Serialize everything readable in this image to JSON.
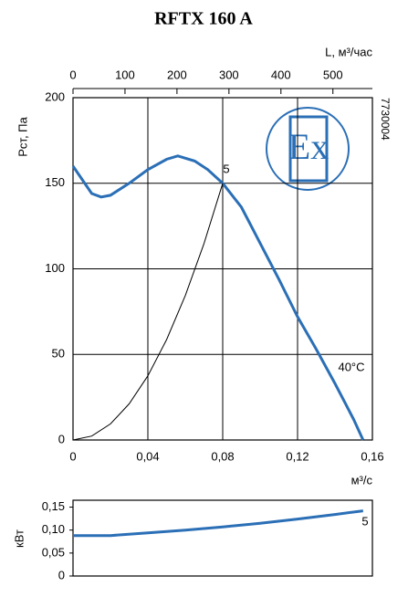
{
  "chart_data": [
    {
      "type": "line",
      "title": "RFTX 160 A",
      "ylabel": "Pст, Па",
      "xlabel": "м³/с",
      "x2label": "L, м³/час",
      "xlim": [
        0,
        0.16
      ],
      "xticks": [
        0,
        {
          "value": 0.04,
          "label": "0,04"
        },
        {
          "value": 0.08,
          "label": "0,08"
        },
        {
          "value": 0.12,
          "label": "0,12"
        },
        {
          "value": 0.16,
          "label": "0,16"
        }
      ],
      "x2lim": [
        0,
        576
      ],
      "x2ticks": [
        0,
        100,
        200,
        300,
        400,
        500
      ],
      "ylim": [
        0,
        200
      ],
      "yticks": [
        0,
        50,
        100,
        150,
        200
      ],
      "grid": true,
      "series": [
        {
          "color": "#2b6fb6",
          "x": [
            0,
            0.01,
            0.015,
            0.02,
            0.03,
            0.04,
            0.05,
            0.056,
            0.065,
            0.072,
            0.08,
            0.09,
            0.1,
            0.11,
            0.12,
            0.13,
            0.14,
            0.15,
            0.155
          ],
          "values": [
            160,
            144,
            142,
            143,
            150,
            158,
            164,
            166,
            163,
            158,
            150,
            136,
            115,
            94,
            72,
            53,
            33,
            12,
            0
          ]
        },
        {
          "color": "#000000",
          "x": [
            0,
            0.01,
            0.02,
            0.03,
            0.04,
            0.05,
            0.06,
            0.07,
            0.08
          ],
          "values": [
            0,
            2.3,
            9.4,
            21.1,
            37.5,
            58.6,
            84.4,
            114.8,
            150
          ]
        }
      ],
      "annotations": [
        "5",
        "40°C"
      ],
      "code": "7730004",
      "badge": "Ex"
    },
    {
      "type": "line",
      "ylabel": "кВт",
      "xlim": [
        0,
        0.16
      ],
      "ylim": [
        0,
        0.165
      ],
      "yticks": [
        0,
        {
          "value": 0.05,
          "label": "0,05"
        },
        {
          "value": 0.1,
          "label": "0,10"
        },
        {
          "value": 0.15,
          "label": "0,15"
        }
      ],
      "grid": false,
      "series": [
        {
          "color": "#2b6fb6",
          "x": [
            0,
            0.02,
            0.04,
            0.06,
            0.08,
            0.1,
            0.12,
            0.14,
            0.155
          ],
          "values": [
            0.088,
            0.088,
            0.094,
            0.1,
            0.107,
            0.115,
            0.124,
            0.134,
            0.142
          ]
        }
      ],
      "annotations": [
        "5"
      ]
    }
  ]
}
